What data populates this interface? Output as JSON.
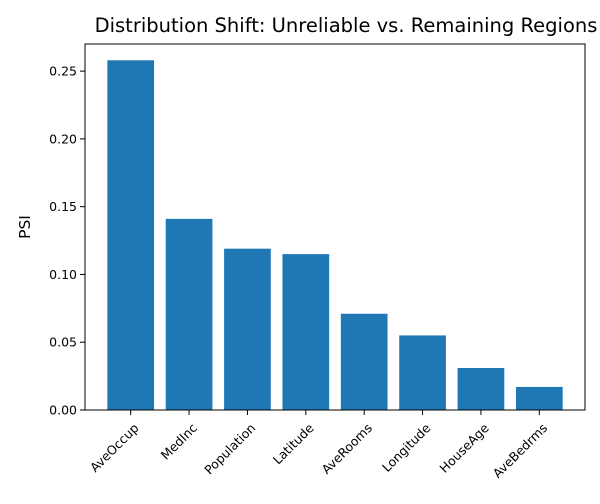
{
  "chart_data": {
    "type": "bar",
    "title": "Distribution Shift: Unreliable vs. Remaining Regions",
    "xlabel": "",
    "ylabel": "PSI",
    "categories": [
      "AveOccup",
      "MedInc",
      "Population",
      "Latitude",
      "AveRooms",
      "Longitude",
      "HouseAge",
      "AveBedrms"
    ],
    "values": [
      0.258,
      0.141,
      0.119,
      0.115,
      0.071,
      0.055,
      0.031,
      0.017
    ],
    "ylim": [
      0,
      0.27
    ],
    "yticks": [
      0.0,
      0.05,
      0.1,
      0.15,
      0.2,
      0.25
    ],
    "ytick_labels": [
      "0.00",
      "0.05",
      "0.10",
      "0.15",
      "0.20",
      "0.25"
    ],
    "bar_color": "#1f77b4",
    "grid": false,
    "legend": "none"
  }
}
